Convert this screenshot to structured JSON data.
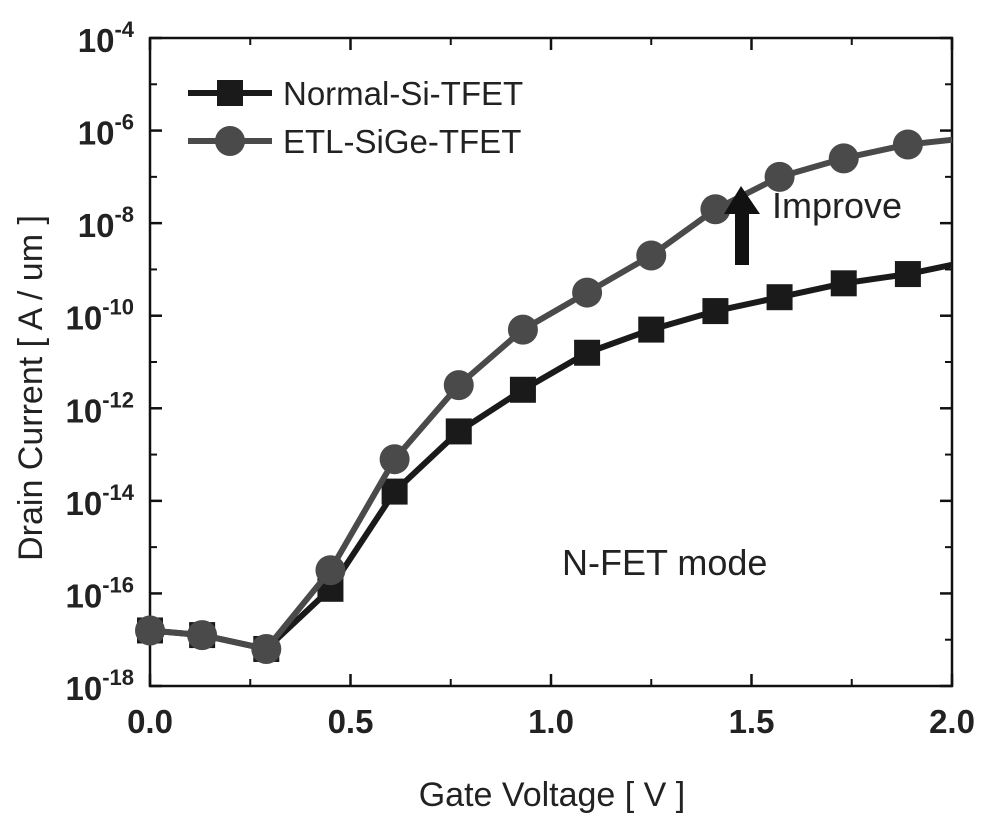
{
  "chart_data": {
    "type": "line",
    "xlabel": "Gate Voltage [ V ]",
    "ylabel": "Drain Current [ A / um ]",
    "xlim": [
      0.0,
      2.0
    ],
    "ylim_exponent": [
      -18,
      -4
    ],
    "y_scale": "log",
    "x_ticks": [
      "0.0",
      "0.5",
      "1.0",
      "1.5",
      "2.0"
    ],
    "y_ticks": [
      {
        "base": "10",
        "exp": "-4"
      },
      {
        "base": "10",
        "exp": "-6"
      },
      {
        "base": "10",
        "exp": "-8"
      },
      {
        "base": "10",
        "exp": "-10"
      },
      {
        "base": "10",
        "exp": "-12"
      },
      {
        "base": "10",
        "exp": "-14"
      },
      {
        "base": "10",
        "exp": "-16"
      },
      {
        "base": "10",
        "exp": "-18"
      }
    ],
    "legend_position": "top-left",
    "series": [
      {
        "name": "Normal-Si-TFET",
        "marker": "square",
        "color": "#1a1a1a",
        "x": [
          0.0,
          0.13,
          0.29,
          0.45,
          0.61,
          0.77,
          0.93,
          1.09,
          1.25,
          1.41,
          1.57,
          1.73,
          1.89,
          2.0
        ],
        "log10_y": [
          -16.8,
          -16.9,
          -17.2,
          -15.9,
          -13.8,
          -12.5,
          -11.6,
          -10.8,
          -10.3,
          -9.9,
          -9.6,
          -9.3,
          -9.1,
          -8.9
        ]
      },
      {
        "name": "ETL-SiGe-TFET",
        "marker": "circle",
        "color": "#4a4a4a",
        "x": [
          0.0,
          0.13,
          0.29,
          0.45,
          0.61,
          0.77,
          0.93,
          1.09,
          1.25,
          1.41,
          1.57,
          1.73,
          1.89,
          2.0
        ],
        "log10_y": [
          -16.8,
          -16.9,
          -17.2,
          -15.5,
          -13.1,
          -11.5,
          -10.3,
          -9.5,
          -8.7,
          -7.7,
          -7.0,
          -6.6,
          -6.3,
          -6.2
        ]
      }
    ],
    "annotations": {
      "improve": "Improve",
      "mode": "N-FET mode"
    }
  }
}
